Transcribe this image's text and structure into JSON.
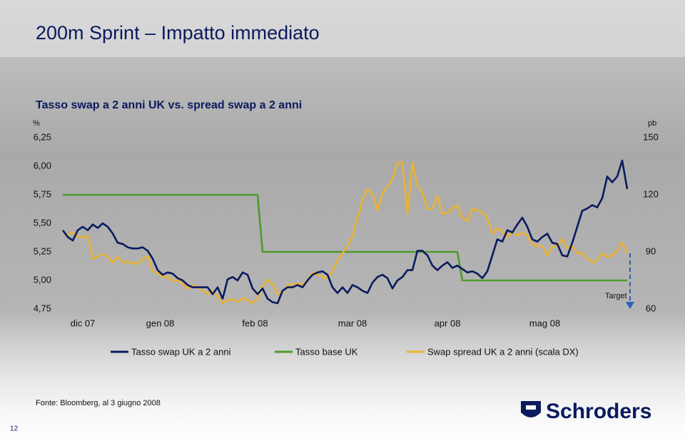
{
  "chart_data": {
    "type": "line",
    "title": "200m Sprint – Impatto immediato",
    "subtitle": "Tasso swap a 2 anni UK vs. spread swap a 2 anni",
    "y_label": "%",
    "y2_label": "pb",
    "annotation": "Target",
    "source": "Fonte: Bloomberg, al 3 giugno 2008",
    "page_number": "12",
    "logo": "Schroders",
    "xlim": [
      0,
      113
    ],
    "xticks": [
      {
        "value": 4,
        "label": "dic 07"
      },
      {
        "value": 19.5,
        "label": "gen 08"
      },
      {
        "value": 38.5,
        "label": "feb 08"
      },
      {
        "value": 58,
        "label": "mar 08"
      },
      {
        "value": 77,
        "label": "apr 08"
      },
      {
        "value": 96.5,
        "label": "mag 08"
      }
    ],
    "ylim": [
      4.75,
      6.25
    ],
    "yticks": [
      {
        "value": 6.25,
        "label": "6,25"
      },
      {
        "value": 6.0,
        "label": "6,00"
      },
      {
        "value": 5.75,
        "label": "5,75"
      },
      {
        "value": 5.5,
        "label": "5,50"
      },
      {
        "value": 5.25,
        "label": "5,25"
      },
      {
        "value": 5.0,
        "label": "5,00"
      },
      {
        "value": 4.75,
        "label": "4,75"
      }
    ],
    "y2lim": [
      60,
      150
    ],
    "y2ticks": [
      150,
      120,
      90,
      60
    ],
    "grid": false,
    "series": [
      {
        "name": "Tasso swap UK a 2 anni",
        "color": "#0b1a5e",
        "values": [
          5.44,
          5.38,
          5.35,
          5.44,
          5.47,
          5.44,
          5.49,
          5.46,
          5.5,
          5.47,
          5.41,
          5.33,
          5.32,
          5.29,
          5.28,
          5.28,
          5.29,
          5.26,
          5.19,
          5.09,
          5.05,
          5.07,
          5.06,
          5.02,
          5.0,
          4.96,
          4.94,
          4.94,
          4.94,
          4.94,
          4.88,
          4.94,
          4.84,
          5.01,
          5.03,
          5.0,
          5.07,
          5.05,
          4.93,
          4.88,
          4.93,
          4.84,
          4.81,
          4.8,
          4.91,
          4.94,
          4.94,
          4.96,
          4.94,
          5.0,
          5.05,
          5.07,
          5.08,
          5.05,
          4.94,
          4.89,
          4.94,
          4.89,
          4.96,
          4.94,
          4.91,
          4.89,
          4.98,
          5.03,
          5.05,
          5.02,
          4.93,
          5.0,
          5.03,
          5.09,
          5.09,
          5.26,
          5.26,
          5.22,
          5.13,
          5.09,
          5.13,
          5.16,
          5.11,
          5.13,
          5.1,
          5.07,
          5.08,
          5.06,
          5.02,
          5.08,
          5.22,
          5.36,
          5.34,
          5.44,
          5.42,
          5.49,
          5.55,
          5.47,
          5.36,
          5.34,
          5.38,
          5.41,
          5.33,
          5.32,
          5.22,
          5.21,
          5.33,
          5.47,
          5.61,
          5.63,
          5.66,
          5.64,
          5.72,
          5.91,
          5.86,
          5.91,
          6.05,
          5.8
        ]
      },
      {
        "name": "Tasso base UK",
        "color": "#4f9a2c",
        "values": [
          5.75,
          5.75,
          5.75,
          5.75,
          5.75,
          5.75,
          5.75,
          5.75,
          5.75,
          5.75,
          5.75,
          5.75,
          5.75,
          5.75,
          5.75,
          5.75,
          5.75,
          5.75,
          5.75,
          5.75,
          5.75,
          5.75,
          5.75,
          5.75,
          5.75,
          5.75,
          5.75,
          5.75,
          5.75,
          5.75,
          5.75,
          5.75,
          5.75,
          5.75,
          5.75,
          5.75,
          5.75,
          5.75,
          5.75,
          5.75,
          5.25,
          5.25,
          5.25,
          5.25,
          5.25,
          5.25,
          5.25,
          5.25,
          5.25,
          5.25,
          5.25,
          5.25,
          5.25,
          5.25,
          5.25,
          5.25,
          5.25,
          5.25,
          5.25,
          5.25,
          5.25,
          5.25,
          5.25,
          5.25,
          5.25,
          5.25,
          5.25,
          5.25,
          5.25,
          5.25,
          5.25,
          5.25,
          5.25,
          5.25,
          5.25,
          5.25,
          5.25,
          5.25,
          5.25,
          5.25,
          5.0,
          5.0,
          5.0,
          5.0,
          5.0,
          5.0,
          5.0,
          5.0,
          5.0,
          5.0,
          5.0,
          5.0,
          5.0,
          5.0,
          5.0,
          5.0,
          5.0,
          5.0,
          5.0,
          5.0,
          5.0,
          5.0,
          5.0,
          5.0,
          5.0,
          5.0,
          5.0,
          5.0,
          5.0,
          5.0,
          5.0,
          5.0,
          5.0,
          5.0
        ]
      },
      {
        "name": "Swap spread UK a 2 anni (scala DX)",
        "color": "#e9b234",
        "axis": "y2",
        "values": [
          100.5,
          98.6,
          100.5,
          97.9,
          97.5,
          98.6,
          86.3,
          87.4,
          88.9,
          87.4,
          84.4,
          87.4,
          84.8,
          84.4,
          84.4,
          83.6,
          86.3,
          87.8,
          79.9,
          78.8,
          76.9,
          76.9,
          75.0,
          75.0,
          73.1,
          70.5,
          72.4,
          71.6,
          69.4,
          67.9,
          69.4,
          66.8,
          63.0,
          64.9,
          64.9,
          63.8,
          65.6,
          64.9,
          63.0,
          65.6,
          71.6,
          75.4,
          73.1,
          67.9,
          68.6,
          72.4,
          73.1,
          73.1,
          73.1,
          75.0,
          79.1,
          78.0,
          76.9,
          76.1,
          79.9,
          85.5,
          89.3,
          93.0,
          98.6,
          108.0,
          117.4,
          123.0,
          120.4,
          111.8,
          121.1,
          124.1,
          128.6,
          136.9,
          136.9,
          109.9,
          136.9,
          124.9,
          121.1,
          112.5,
          112.9,
          119.3,
          109.9,
          110.6,
          112.9,
          114.4,
          108.0,
          106.1,
          112.9,
          111.8,
          110.6,
          108.0,
          99.4,
          102.4,
          100.5,
          97.9,
          100.5,
          98.6,
          100.1,
          98.6,
          94.1,
          93.0,
          93.0,
          88.1,
          93.0,
          93.0,
          96.8,
          91.9,
          93.0,
          89.3,
          89.3,
          86.6,
          84.4,
          85.5,
          89.3,
          87.4,
          88.1,
          90.4,
          94.9,
          89.3
        ]
      }
    ]
  }
}
